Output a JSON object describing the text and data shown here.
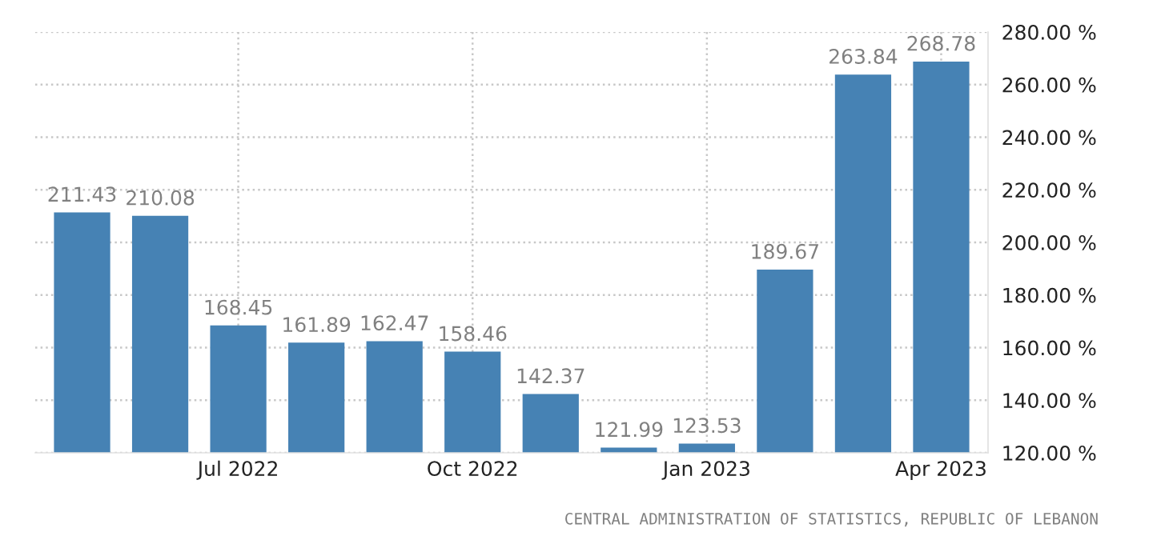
{
  "chart_data": {
    "type": "bar",
    "categories": [
      null,
      null,
      "Jul 2022",
      null,
      null,
      "Oct 2022",
      null,
      null,
      "Jan 2023",
      null,
      null,
      "Apr 2023"
    ],
    "values": [
      211.43,
      210.08,
      168.45,
      161.89,
      162.47,
      158.46,
      142.37,
      121.99,
      123.53,
      189.67,
      263.84,
      268.78
    ],
    "color": "#4682b4",
    "ylim": [
      120,
      280
    ],
    "yticks": [
      {
        "value": 120,
        "label": "120.00 %"
      },
      {
        "value": 140,
        "label": "140.00 %"
      },
      {
        "value": 160,
        "label": "160.00 %"
      },
      {
        "value": 180,
        "label": "180.00 %"
      },
      {
        "value": 200,
        "label": "200.00 %"
      },
      {
        "value": 220,
        "label": "220.00 %"
      },
      {
        "value": 240,
        "label": "240.00 %"
      },
      {
        "value": 260,
        "label": "260.00 %"
      },
      {
        "value": 280,
        "label": "280.00 %"
      }
    ],
    "grid": true,
    "data_labels": true,
    "annotations": [
      "CENTRAL ADMINISTRATION OF STATISTICS, REPUBLIC OF LEBANON"
    ]
  }
}
